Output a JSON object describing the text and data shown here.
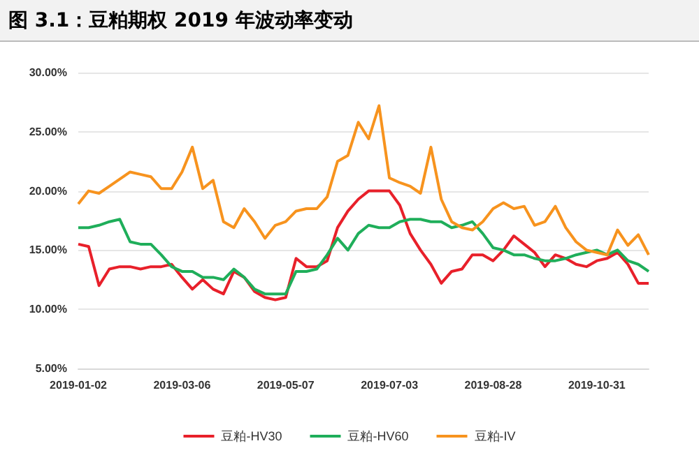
{
  "chart_data": {
    "type": "line",
    "title": "图 3.1：豆粕期权 2019 年波动率变动",
    "categories": [
      "2019-01-02",
      null,
      null,
      null,
      null,
      null,
      null,
      null,
      null,
      null,
      "2019-03-06",
      null,
      null,
      null,
      null,
      null,
      null,
      null,
      null,
      null,
      "2019-05-07",
      null,
      null,
      null,
      null,
      null,
      null,
      null,
      null,
      null,
      "2019-07-03",
      null,
      null,
      null,
      null,
      null,
      null,
      null,
      null,
      null,
      "2019-08-28",
      null,
      null,
      null,
      null,
      null,
      null,
      null,
      null,
      null,
      "2019-10-31",
      null,
      null,
      null,
      null,
      null
    ],
    "series": [
      {
        "name": "豆粕-HV30",
        "color": "#e8202a",
        "values": [
          15.5,
          15.3,
          12.0,
          13.4,
          13.6,
          13.6,
          13.4,
          13.6,
          13.6,
          13.8,
          12.7,
          11.7,
          12.5,
          11.7,
          11.3,
          13.2,
          12.7,
          11.5,
          11.0,
          10.8,
          11.0,
          14.3,
          13.6,
          13.6,
          14.1,
          16.9,
          18.3,
          19.3,
          20.0,
          20.0,
          20.0,
          18.8,
          16.4,
          15.0,
          13.8,
          12.2,
          13.2,
          13.4,
          14.6,
          14.6,
          14.1,
          15.0,
          16.2,
          15.5,
          14.8,
          13.6,
          14.6,
          14.3,
          13.8,
          13.6,
          14.1,
          14.3,
          14.8,
          13.8,
          12.2,
          12.2
        ]
      },
      {
        "name": "豆粕-HV60",
        "color": "#1fae5a",
        "values": [
          16.9,
          16.9,
          17.1,
          17.4,
          17.6,
          15.7,
          15.5,
          15.5,
          14.6,
          13.6,
          13.2,
          13.2,
          12.7,
          12.7,
          12.5,
          13.4,
          12.7,
          11.7,
          11.3,
          11.3,
          11.3,
          13.2,
          13.2,
          13.4,
          14.6,
          16.0,
          15.0,
          16.4,
          17.1,
          16.9,
          16.9,
          17.4,
          17.6,
          17.6,
          17.4,
          17.4,
          16.9,
          17.1,
          17.4,
          16.4,
          15.2,
          15.0,
          14.6,
          14.6,
          14.3,
          14.1,
          14.1,
          14.3,
          14.6,
          14.8,
          15.0,
          14.6,
          15.0,
          14.1,
          13.8,
          13.2
        ]
      },
      {
        "name": "豆粕-IV",
        "color": "#f7931e",
        "values": [
          18.9,
          20.0,
          19.8,
          20.4,
          21.0,
          21.6,
          21.4,
          21.2,
          20.2,
          20.2,
          21.6,
          23.7,
          20.2,
          20.9,
          17.4,
          16.9,
          18.5,
          17.4,
          16.0,
          17.1,
          17.4,
          18.3,
          18.5,
          18.5,
          19.5,
          22.5,
          23.0,
          25.8,
          24.4,
          27.2,
          21.1,
          20.7,
          20.4,
          19.8,
          23.7,
          19.3,
          17.4,
          16.9,
          16.7,
          17.4,
          18.5,
          19.0,
          18.5,
          18.7,
          17.1,
          17.4,
          18.7,
          16.9,
          15.7,
          15.0,
          14.8,
          14.6,
          16.7,
          15.4,
          16.3,
          14.6
        ]
      }
    ],
    "ylim": [
      5,
      30
    ],
    "yticks": [
      {
        "value": 5,
        "label": "5.00%"
      },
      {
        "value": 10,
        "label": "10.00%"
      },
      {
        "value": 15,
        "label": "15.00%"
      },
      {
        "value": 20,
        "label": "20.00%"
      },
      {
        "value": 25,
        "label": "25.00%"
      },
      {
        "value": 30,
        "label": "30.00%"
      }
    ],
    "grid": "y",
    "legend": "bottom",
    "marker": "none",
    "line_style": "solid"
  }
}
